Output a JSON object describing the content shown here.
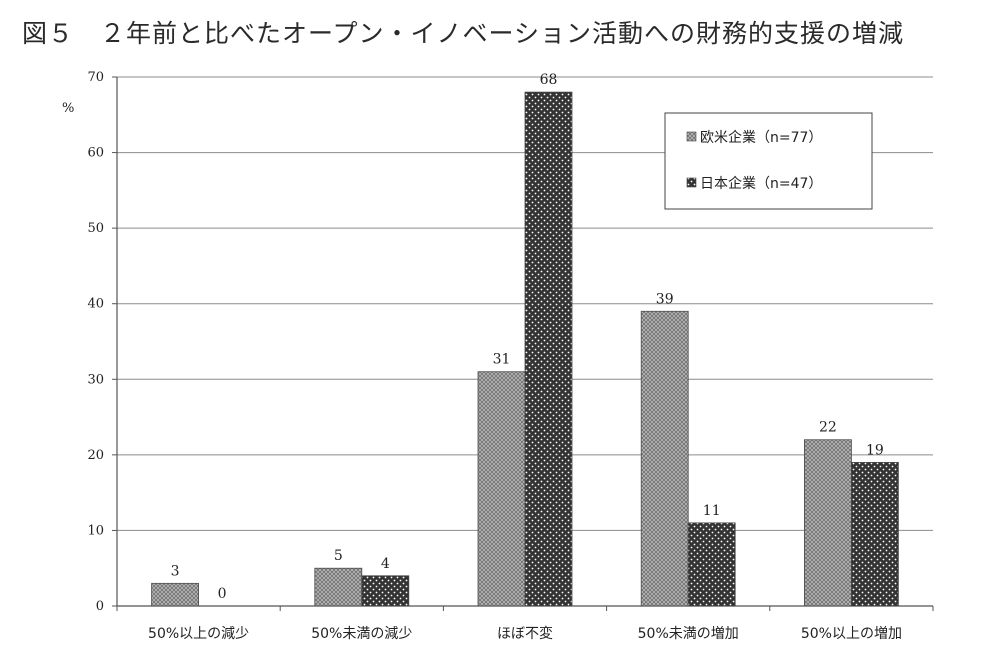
{
  "figure": {
    "title": "図５　２年前と比べたオープン・イノベーション活動への財務的支援の増減"
  },
  "chart_data": {
    "type": "bar",
    "ylabel": "%",
    "ylim": [
      0,
      70
    ],
    "yticks": [
      0,
      10,
      20,
      30,
      40,
      50,
      60,
      70
    ],
    "grid": true,
    "legend_position": "top-right",
    "categories": [
      "50%以上の減少",
      "50%未満の減少",
      "ほぼ不変",
      "50%未満の増加",
      "50%以上の増加"
    ],
    "series": [
      {
        "name": "欧米企業（n=77）",
        "values": [
          3,
          5,
          31,
          39,
          22
        ],
        "data_labels": [
          "3",
          "5",
          "31",
          "39",
          "22"
        ],
        "color": "#a8a8a8",
        "pattern": "crosshatch"
      },
      {
        "name": "日本企業（n=47）",
        "values": [
          0,
          4,
          68,
          11,
          19
        ],
        "data_labels": [
          "0",
          "4",
          "68",
          "11",
          "19"
        ],
        "color": "#3a3a3a",
        "pattern": "dots"
      }
    ]
  }
}
